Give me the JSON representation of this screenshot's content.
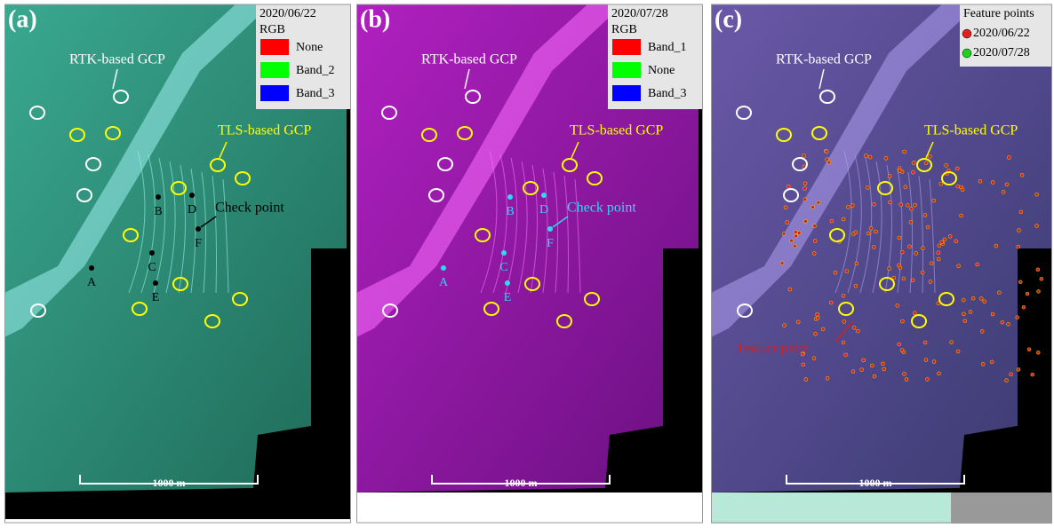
{
  "panels": [
    {
      "label": "(a)",
      "legend": {
        "title": "2020/06/22",
        "subtitle": "RGB",
        "items": [
          {
            "label": "None",
            "color": "#ff0000"
          },
          {
            "label": "Band_2",
            "color": "#00ff00"
          },
          {
            "label": "Band_3",
            "color": "#0000ff"
          }
        ]
      },
      "rtk": "RTK-based GCP",
      "tls": "TLS-based GCP",
      "check": "Check point",
      "points": [
        "A",
        "B",
        "C",
        "D",
        "E",
        "F"
      ],
      "scale": "1000 m"
    },
    {
      "label": "(b)",
      "legend": {
        "title": "2020/07/28",
        "subtitle": "RGB",
        "items": [
          {
            "label": "Band_1",
            "color": "#ff0000"
          },
          {
            "label": "None",
            "color": "#00ff00"
          },
          {
            "label": "Band_3",
            "color": "#0000ff"
          }
        ]
      },
      "rtk": "RTK-based GCP",
      "tls": "TLS-based GCP",
      "check": "Check point",
      "points": [
        "A",
        "B",
        "C",
        "D",
        "E",
        "F"
      ],
      "scale": "1000 m"
    },
    {
      "label": "(c)",
      "legend": {
        "title": "Feature points",
        "items": [
          {
            "label": "2020/06/22",
            "color": "#e02020"
          },
          {
            "label": "2020/07/28",
            "color": "#20d020"
          }
        ]
      },
      "rtk": "RTK-based GCP",
      "tls": "TLS-based GCP",
      "feature": "Feature point",
      "scale": "1000 m"
    }
  ]
}
